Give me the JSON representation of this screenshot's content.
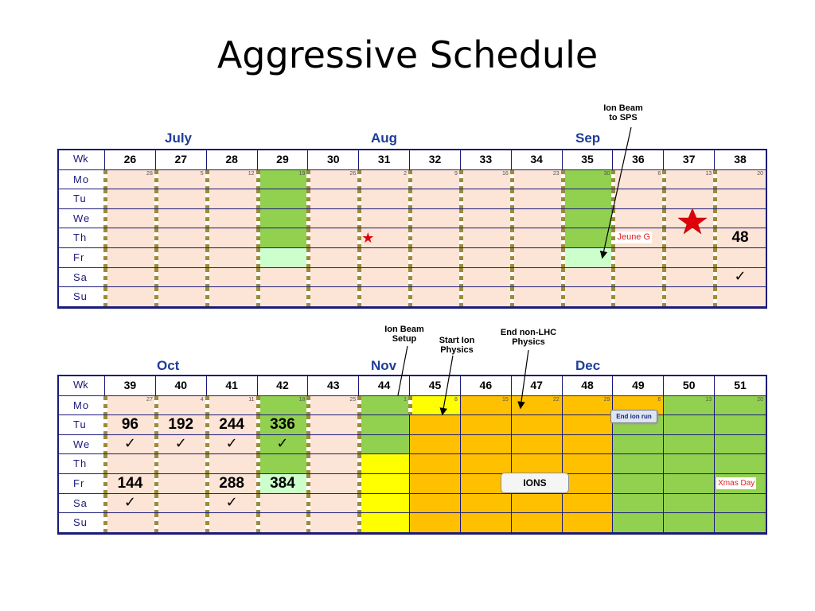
{
  "title": "Aggressive Schedule",
  "top": {
    "months": [
      "July",
      "Aug",
      "Sep"
    ],
    "wk_label": "Wk",
    "weeks": [
      "26",
      "27",
      "28",
      "29",
      "30",
      "31",
      "32",
      "33",
      "34",
      "35",
      "36",
      "37",
      "38"
    ],
    "days": [
      "Mo",
      "Tu",
      "We",
      "Th",
      "Fr",
      "Sa",
      "Su"
    ],
    "dates": [
      "28",
      "5",
      "12",
      "19",
      "26",
      "2",
      "9",
      "16",
      "23",
      "30",
      "6",
      "13",
      "20"
    ],
    "labels": {
      "jeune": "Jeune G",
      "number": "48",
      "check": "✓"
    },
    "annotations": {
      "ion_beam_sps": "Ion Beam\nto SPS"
    }
  },
  "bottom": {
    "months": [
      "Oct",
      "Nov",
      "Dec"
    ],
    "wk_label": "Wk",
    "weeks": [
      "39",
      "40",
      "41",
      "42",
      "43",
      "44",
      "45",
      "46",
      "47",
      "48",
      "49",
      "50",
      "51"
    ],
    "days": [
      "Mo",
      "Tu",
      "We",
      "Th",
      "Fr",
      "Sa",
      "Su"
    ],
    "dates": [
      "27",
      "4",
      "11",
      "18",
      "25",
      "1",
      "8",
      "15",
      "22",
      "29",
      "6",
      "13",
      "20"
    ],
    "numbers": {
      "tu": [
        "96",
        "192",
        "244",
        "336"
      ],
      "fr": [
        "144",
        "288",
        "384"
      ]
    },
    "check": "✓",
    "labels": {
      "xmas": "Xmas Day",
      "ions": "IONS",
      "end_ion_run": "End ion run"
    },
    "annotations": {
      "ion_beam_setup": "Ion Beam\nSetup",
      "start_ion_physics": "Start Ion\nPhysics",
      "end_non_lhc": "End non-LHC\nPhysics"
    }
  },
  "colors": {
    "peach": "#fce4d6",
    "green": "#92d050",
    "light_green": "#ccffcc",
    "yellow": "#ffff00",
    "orange": "#ffc000",
    "month_blue": "#1f3c99",
    "border_navy": "#1a1a7a"
  }
}
